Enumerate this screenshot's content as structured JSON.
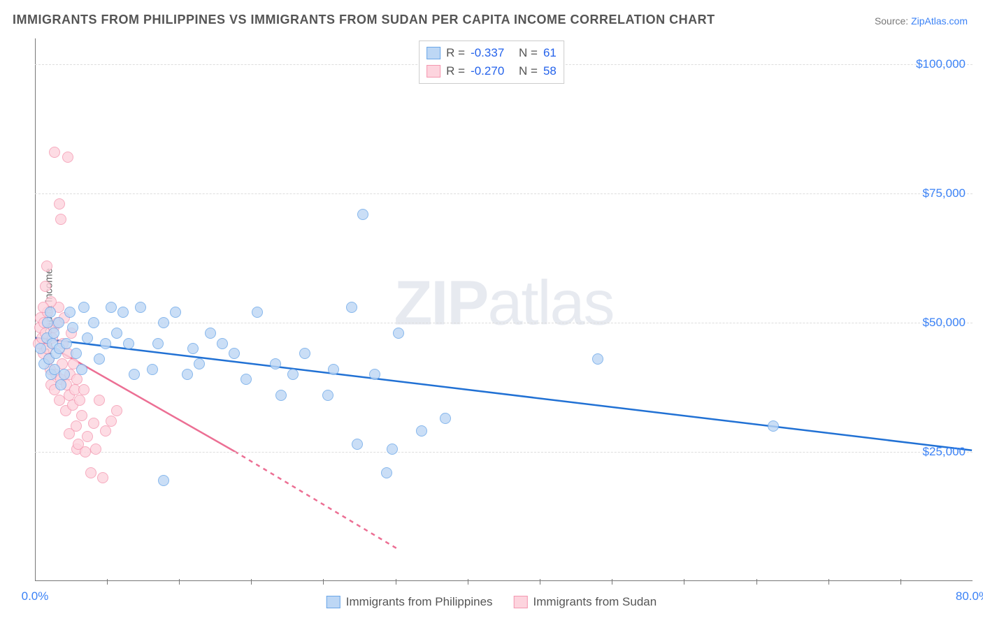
{
  "title": "IMMIGRANTS FROM PHILIPPINES VS IMMIGRANTS FROM SUDAN PER CAPITA INCOME CORRELATION CHART",
  "source_label": "Source:",
  "source_name": "ZipAtlas.com",
  "ylabel": "Per Capita Income",
  "watermark": "ZIPatlas",
  "chart": {
    "type": "scatter",
    "xlim": [
      0,
      80
    ],
    "ylim": [
      0,
      105000
    ],
    "x_tick_start": 0,
    "x_tick_end": 80,
    "x_tick_labels": [
      "0.0%",
      "80.0%"
    ],
    "x_minor_ticks": [
      6.15,
      12.3,
      18.46,
      24.6,
      30.77,
      36.92,
      43.08,
      49.23,
      55.38,
      61.54,
      67.69,
      73.85
    ],
    "y_grid": [
      25000,
      50000,
      75000,
      100000
    ],
    "y_tick_labels": [
      "$25,000",
      "$50,000",
      "$75,000",
      "$100,000"
    ],
    "background_color": "#ffffff",
    "grid_color": "#dddddd",
    "axis_color": "#777777",
    "label_color": "#3b82f6",
    "marker_radius": 8,
    "marker_opacity": 0.35,
    "line_width": 2.5
  },
  "series": [
    {
      "name": "Immigrants from Philippines",
      "key": "philippines",
      "fill_color": "#bdd7f5",
      "stroke_color": "#6aa6e8",
      "line_color": "#2171d4",
      "R": "-0.337",
      "N": "61",
      "trend": {
        "x1": 0,
        "y1": 47000,
        "x2": 80,
        "y2": 25200,
        "dash": "none"
      },
      "points": [
        [
          0.5,
          45000
        ],
        [
          0.8,
          42000
        ],
        [
          1.0,
          47000
        ],
        [
          1.1,
          50000
        ],
        [
          1.2,
          43000
        ],
        [
          1.3,
          52000
        ],
        [
          1.4,
          40000
        ],
        [
          1.5,
          46000
        ],
        [
          1.6,
          48000
        ],
        [
          1.7,
          41000
        ],
        [
          1.8,
          44000
        ],
        [
          2.0,
          50000
        ],
        [
          2.1,
          45000
        ],
        [
          2.2,
          38000
        ],
        [
          2.5,
          40000
        ],
        [
          2.7,
          46000
        ],
        [
          3,
          52000
        ],
        [
          3.2,
          49000
        ],
        [
          3.5,
          44000
        ],
        [
          4,
          41000
        ],
        [
          4.2,
          53000
        ],
        [
          4.5,
          47000
        ],
        [
          5,
          50000
        ],
        [
          5.5,
          43000
        ],
        [
          6,
          46000
        ],
        [
          6.5,
          53000
        ],
        [
          7,
          48000
        ],
        [
          7.5,
          52000
        ],
        [
          8,
          46000
        ],
        [
          8.5,
          40000
        ],
        [
          9,
          53000
        ],
        [
          10,
          41000
        ],
        [
          10.5,
          46000
        ],
        [
          11,
          50000
        ],
        [
          12,
          52000
        ],
        [
          13,
          40000
        ],
        [
          13.5,
          45000
        ],
        [
          14,
          42000
        ],
        [
          15,
          48000
        ],
        [
          16,
          46000
        ],
        [
          17,
          44000
        ],
        [
          18,
          39000
        ],
        [
          19,
          52000
        ],
        [
          20.5,
          42000
        ],
        [
          21,
          36000
        ],
        [
          22,
          40000
        ],
        [
          23,
          44000
        ],
        [
          25,
          36000
        ],
        [
          25.5,
          41000
        ],
        [
          27,
          53000
        ],
        [
          27.5,
          26500
        ],
        [
          28,
          71000
        ],
        [
          29,
          40000
        ],
        [
          30,
          21000
        ],
        [
          30.5,
          25500
        ],
        [
          31,
          48000
        ],
        [
          33,
          29000
        ],
        [
          35,
          31500
        ],
        [
          48,
          43000
        ],
        [
          63,
          30000
        ],
        [
          11,
          19500
        ]
      ]
    },
    {
      "name": "Immigrants from Sudan",
      "key": "sudan",
      "fill_color": "#fdd4de",
      "stroke_color": "#f497b0",
      "line_color": "#ec6f94",
      "R": "-0.270",
      "N": "58",
      "trend": {
        "x1": 0,
        "y1": 47000,
        "x2": 17,
        "y2": 25000,
        "dash_x2": 31,
        "dash_y2": 6000
      },
      "points": [
        [
          0.3,
          46000
        ],
        [
          0.4,
          49000
        ],
        [
          0.5,
          51000
        ],
        [
          0.6,
          47000
        ],
        [
          0.7,
          44000
        ],
        [
          0.8,
          50000
        ],
        [
          0.9,
          48000
        ],
        [
          1.0,
          45000
        ],
        [
          1.1,
          52000
        ],
        [
          1.2,
          43000
        ],
        [
          1.3,
          41000
        ],
        [
          1.4,
          38000
        ],
        [
          1.5,
          47000
        ],
        [
          1.6,
          49000
        ],
        [
          1.7,
          37000
        ],
        [
          1.8,
          40000
        ],
        [
          1.9,
          50000
        ],
        [
          2.0,
          53000
        ],
        [
          2.1,
          35000
        ],
        [
          2.2,
          39000
        ],
        [
          2.3,
          42000
        ],
        [
          2.4,
          46000
        ],
        [
          2.5,
          51000
        ],
        [
          2.6,
          33000
        ],
        [
          2.7,
          38000
        ],
        [
          2.8,
          44000
        ],
        [
          2.9,
          36000
        ],
        [
          3.0,
          40000
        ],
        [
          3.1,
          48000
        ],
        [
          3.2,
          34000
        ],
        [
          3.3,
          42000
        ],
        [
          3.4,
          37000
        ],
        [
          3.5,
          30000
        ],
        [
          3.6,
          39000
        ],
        [
          3.8,
          35000
        ],
        [
          4.0,
          32000
        ],
        [
          4.2,
          37000
        ],
        [
          4.5,
          28000
        ],
        [
          5.0,
          30500
        ],
        [
          5.2,
          25500
        ],
        [
          5.5,
          35000
        ],
        [
          6.0,
          29000
        ],
        [
          6.5,
          31000
        ],
        [
          7.0,
          33000
        ],
        [
          4.8,
          21000
        ],
        [
          0.9,
          57000
        ],
        [
          1.0,
          61000
        ],
        [
          1.7,
          83000
        ],
        [
          2.8,
          82000
        ],
        [
          2.1,
          73000
        ],
        [
          2.2,
          70000
        ],
        [
          1.4,
          54000
        ],
        [
          0.7,
          53000
        ],
        [
          3.6,
          25500
        ],
        [
          5.8,
          20000
        ],
        [
          4.3,
          25000
        ],
        [
          2.9,
          28500
        ],
        [
          3.7,
          26500
        ]
      ]
    }
  ],
  "legend_top": {
    "r_label": "R =",
    "n_label": "N ="
  },
  "legend_bottom": true
}
